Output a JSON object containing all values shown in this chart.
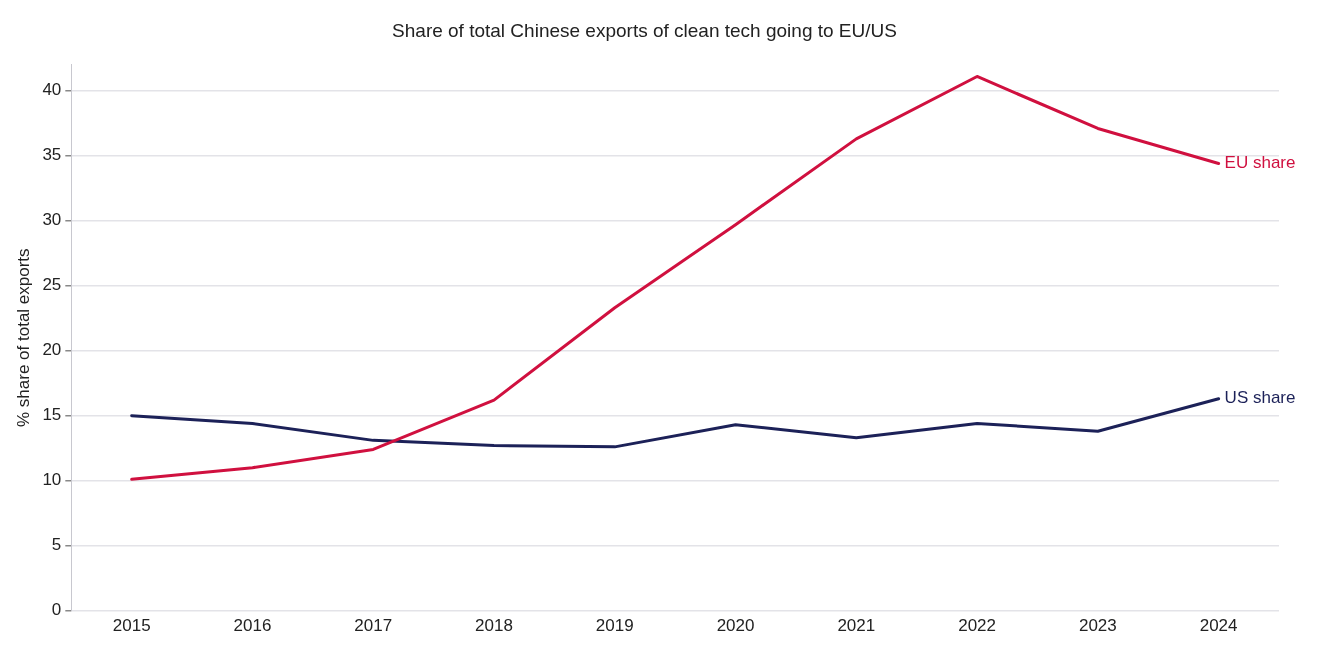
{
  "chart_data": {
    "type": "line",
    "title": "Share of total Chinese exports of clean tech going to EU/US",
    "ylabel": "% share of total exports",
    "categories": [
      "2015",
      "2016",
      "2017",
      "2018",
      "2019",
      "2020",
      "2021",
      "2022",
      "2023",
      "2024"
    ],
    "series": [
      {
        "name": "EU share",
        "color": "#d0103f",
        "values": [
          10.1,
          11.0,
          12.4,
          16.2,
          23.3,
          29.7,
          36.3,
          41.1,
          37.1,
          34.4
        ]
      },
      {
        "name": "US share",
        "color": "#1c2158",
        "values": [
          15.0,
          14.4,
          13.1,
          12.7,
          12.6,
          14.3,
          13.3,
          14.4,
          13.8,
          16.3
        ]
      }
    ],
    "ylim": [
      0,
      42
    ],
    "yticks": [
      0,
      5,
      10,
      15,
      20,
      25,
      30,
      35,
      40
    ],
    "grid": "y",
    "legend": false,
    "marker": "none",
    "line_style": "solid"
  }
}
